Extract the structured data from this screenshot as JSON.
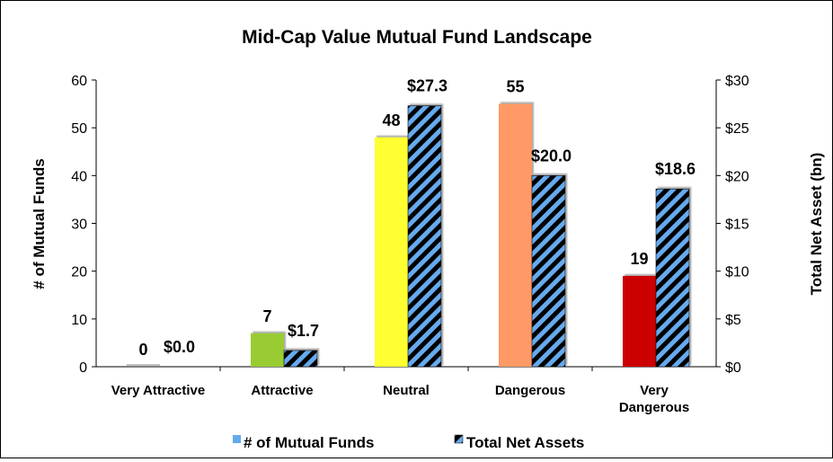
{
  "chart_data": {
    "type": "bar",
    "title": "Mid-Cap Value Mutual Fund Landscape",
    "categories": [
      [
        "Very Attractive"
      ],
      [
        "Attractive"
      ],
      [
        "Neutral"
      ],
      [
        "Dangerous"
      ],
      [
        "Very",
        "Dangerous"
      ]
    ],
    "series": [
      {
        "name": "# of Mutual Funds",
        "axis": "left",
        "values": [
          0,
          7,
          48,
          55,
          19
        ],
        "labels": [
          "0",
          "7",
          "48",
          "55",
          "19"
        ],
        "colors": [
          "#c0c0c0",
          "#99cc33",
          "#ffff33",
          "#ff9966",
          "#cc0000"
        ],
        "legend_color": "#66aaee"
      },
      {
        "name": "Total Net Assets",
        "axis": "right",
        "values": [
          0.0,
          1.7,
          27.3,
          20.0,
          18.6
        ],
        "labels": [
          "$0.0",
          "$1.7",
          "$27.3",
          "$20.0",
          "$18.6"
        ],
        "pattern": "diagonal-stripes",
        "colors": [
          "#66aaee",
          "#000000"
        ]
      }
    ],
    "y_left": {
      "label": "# of Mutual Funds",
      "min": 0,
      "max": 60,
      "step": 10,
      "ticks": [
        "0",
        "10",
        "20",
        "30",
        "40",
        "50",
        "60"
      ]
    },
    "y_right": {
      "label": "Total Net Asset (bn)",
      "min": 0,
      "max": 30,
      "step": 5,
      "ticks": [
        "$0",
        "$5",
        "$10",
        "$15",
        "$20",
        "$25",
        "$30"
      ]
    },
    "grid": false,
    "legend": "bottom-center"
  }
}
